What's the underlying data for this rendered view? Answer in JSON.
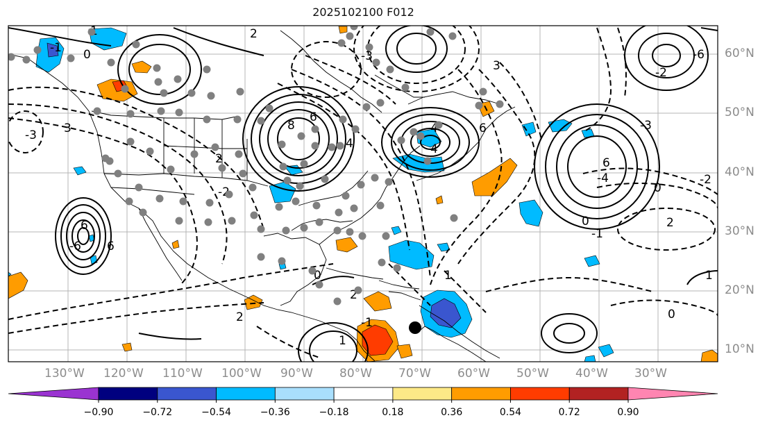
{
  "title": "2025102100 F012",
  "map": {
    "lat_labels": [
      "60°N",
      "50°N",
      "40°N",
      "30°N",
      "20°N",
      "10°N"
    ],
    "lon_labels": [
      "130°W",
      "120°W",
      "110°W",
      "100°W",
      "90°W",
      "80°W",
      "70°W",
      "60°W",
      "50°W",
      "40°W",
      "30°W"
    ],
    "contour_labels": [
      "2",
      "1",
      "-1",
      "0",
      "3",
      "-3",
      "2",
      "-2",
      "-3",
      "8",
      "6",
      "4",
      "6",
      "-6",
      "6",
      "4",
      "-4",
      "6",
      "3",
      "-3",
      "6",
      "-4",
      "-2",
      "-6",
      "2",
      "-2",
      "0",
      "-1",
      "0",
      "1",
      "2",
      "0",
      "-1",
      "1",
      "0",
      "1",
      "2"
    ]
  },
  "colorbar": {
    "ticks": [
      "−0.90",
      "−0.72",
      "−0.54",
      "−0.36",
      "−0.18",
      "0.18",
      "0.36",
      "0.54",
      "0.72",
      "0.90"
    ],
    "colors": {
      "lt_-0.90": "#9a33d1",
      "-0.90_-0.72": "#00007f",
      "-0.72_-0.54": "#3a56cf",
      "-0.54_-0.36": "#00bbff",
      "-0.36_-0.18": "#a9dffd",
      "-0.18_0.18": "#ffffff",
      "0.18_0.36": "#fde987",
      "0.36_0.54": "#ff9c00",
      "0.54_0.72": "#ff3c00",
      "0.72_0.90": "#b22222",
      "gt_0.90": "#ff85b1"
    }
  }
}
